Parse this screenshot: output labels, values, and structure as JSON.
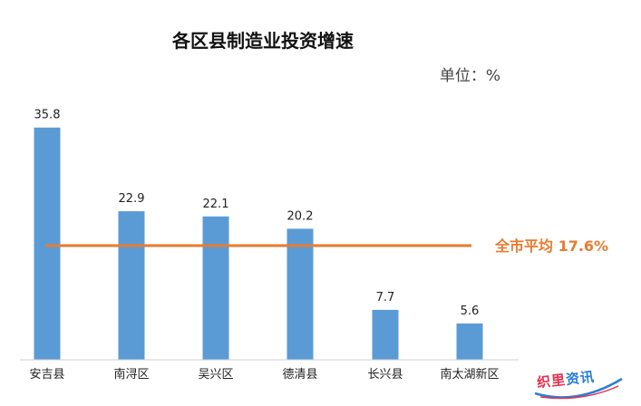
{
  "chart_data": {
    "type": "bar",
    "title": "各区县制造业投资增速",
    "unit": "单位：%",
    "categories": [
      "安吉县",
      "南浔区",
      "吴兴区",
      "德清县",
      "长兴县",
      "南太湖新区"
    ],
    "values": [
      35.8,
      22.9,
      22.1,
      20.2,
      7.7,
      5.6
    ],
    "value_labels": [
      "35.8",
      "22.9",
      "22.1",
      "20.2",
      "7.7",
      "5.6"
    ],
    "ylim": [
      0,
      38
    ],
    "reference_line": {
      "label": "全市平均 17.6%",
      "value": 17.6,
      "color": "#e87b2e"
    },
    "bar_color": "#5b9bd5",
    "grid": false,
    "legend": "none"
  },
  "logo": {
    "text_a": "织里",
    "text_b": "资讯"
  }
}
